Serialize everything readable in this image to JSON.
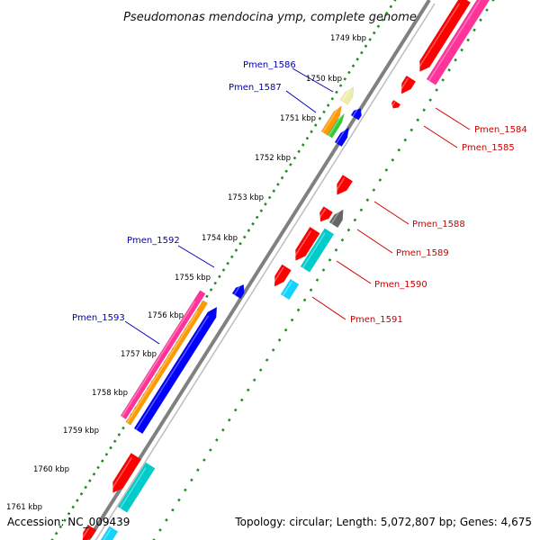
{
  "title": "Pseudomonas mendocina ymp, complete genome",
  "footer": {
    "accession": "Accession: NC_009439",
    "summary": "Topology: circular; Length: 5,072,807 bp; Genes: 4,675"
  },
  "colors": {
    "backbone": "#808080",
    "tick_marks": "#228b22",
    "label_left": "#0000b4",
    "label_right": "#cc0000",
    "feature_red": "#ff0000",
    "feature_pink": "#ff3399",
    "feature_orange": "#ff9900",
    "feature_blue": "#0000ff",
    "feature_cyan": "#00cccc",
    "feature_lightcyan": "#11d4ff",
    "feature_green": "#33cc33",
    "feature_yellow": "#eeeeaa",
    "feature_gray": "#666666"
  },
  "kbp_ticks": [
    "1749 kbp",
    "1750 kbp",
    "1751 kbp",
    "1752 kbp",
    "1753 kbp",
    "1754 kbp",
    "1755 kbp",
    "1756 kbp",
    "1757 kbp",
    "1758 kbp",
    "1759 kbp",
    "1760 kbp",
    "1761 kbp"
  ],
  "gene_labels_left": [
    "Pmen_1586",
    "Pmen_1587",
    "Pmen_1592",
    "Pmen_1593"
  ],
  "gene_labels_right": [
    "Pmen_1584",
    "Pmen_1585",
    "Pmen_1588",
    "Pmen_1589",
    "Pmen_1590",
    "Pmen_1591"
  ]
}
